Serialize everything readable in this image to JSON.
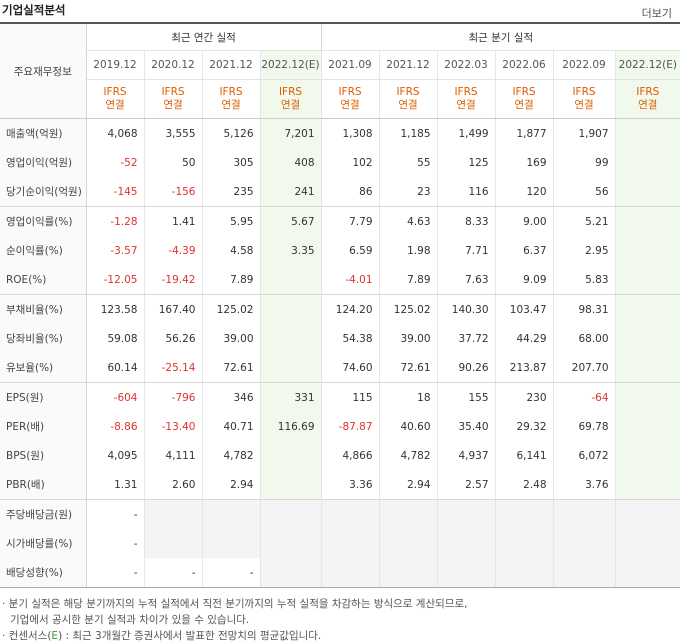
{
  "header": {
    "title": "기업실적분석",
    "more": "더보기"
  },
  "table": {
    "corner_label": "주요재무정보",
    "annual_label": "최근 연간 실적",
    "quarter_label": "최근 분기 실적",
    "periods": [
      "2019.12",
      "2020.12",
      "2021.12",
      "2022.12(E)",
      "2021.09",
      "2021.12",
      "2022.03",
      "2022.06",
      "2022.09",
      "2022.12(E)"
    ],
    "ifrs_top": "IFRS",
    "ifrs_bottom": "연결",
    "rows": [
      {
        "label": "매출액(억원)",
        "values": [
          "4,068",
          "3,555",
          "5,126",
          "7,201",
          "1,308",
          "1,185",
          "1,499",
          "1,877",
          "1,907",
          ""
        ]
      },
      {
        "label": "영업이익(억원)",
        "values": [
          "-52",
          "50",
          "305",
          "408",
          "102",
          "55",
          "125",
          "169",
          "99",
          ""
        ]
      },
      {
        "label": "당기순이익(억원)",
        "values": [
          "-145",
          "-156",
          "235",
          "241",
          "86",
          "23",
          "116",
          "120",
          "56",
          ""
        ]
      },
      {
        "label": "영업이익률(%)",
        "values": [
          "-1.28",
          "1.41",
          "5.95",
          "5.67",
          "7.79",
          "4.63",
          "8.33",
          "9.00",
          "5.21",
          ""
        ]
      },
      {
        "label": "순이익률(%)",
        "values": [
          "-3.57",
          "-4.39",
          "4.58",
          "3.35",
          "6.59",
          "1.98",
          "7.71",
          "6.37",
          "2.95",
          ""
        ]
      },
      {
        "label": "ROE(%)",
        "values": [
          "-12.05",
          "-19.42",
          "7.89",
          "",
          "-4.01",
          "7.89",
          "7.63",
          "9.09",
          "5.83",
          ""
        ]
      },
      {
        "label": "부채비율(%)",
        "values": [
          "123.58",
          "167.40",
          "125.02",
          "",
          "124.20",
          "125.02",
          "140.30",
          "103.47",
          "98.31",
          ""
        ]
      },
      {
        "label": "당좌비율(%)",
        "values": [
          "59.08",
          "56.26",
          "39.00",
          "",
          "54.38",
          "39.00",
          "37.72",
          "44.29",
          "68.00",
          ""
        ]
      },
      {
        "label": "유보율(%)",
        "values": [
          "60.14",
          "-25.14",
          "72.61",
          "",
          "74.60",
          "72.61",
          "90.26",
          "213.87",
          "207.70",
          ""
        ]
      },
      {
        "label": "EPS(원)",
        "values": [
          "-604",
          "-796",
          "346",
          "331",
          "115",
          "18",
          "155",
          "230",
          "-64",
          ""
        ]
      },
      {
        "label": "PER(배)",
        "values": [
          "-8.86",
          "-13.40",
          "40.71",
          "116.69",
          "-87.87",
          "40.60",
          "35.40",
          "29.32",
          "69.78",
          ""
        ]
      },
      {
        "label": "BPS(원)",
        "values": [
          "4,095",
          "4,111",
          "4,782",
          "",
          "4,866",
          "4,782",
          "4,937",
          "6,141",
          "6,072",
          ""
        ]
      },
      {
        "label": "PBR(배)",
        "values": [
          "1.31",
          "2.60",
          "2.94",
          "",
          "3.36",
          "2.94",
          "2.57",
          "2.48",
          "3.76",
          ""
        ]
      },
      {
        "label": "주당배당금(원)",
        "values": [
          "-",
          "",
          "",
          "",
          "",
          "",
          "",
          "",
          "",
          ""
        ]
      },
      {
        "label": "시가배당률(%)",
        "values": [
          "-",
          "",
          "",
          "",
          "",
          "",
          "",
          "",
          "",
          ""
        ]
      },
      {
        "label": "배당성향(%)",
        "values": [
          "-",
          "-",
          "-",
          "",
          "",
          "",
          "",
          "",
          "",
          ""
        ]
      }
    ]
  },
  "notes": {
    "line1": "· 분기 실적은 해당 분기까지의 누적 실적에서 직전 분기까지의 누적 실적을 차감하는 방식으로 계산되므로,",
    "line2": "기업에서 공시한 분기 실적과 차이가 있을 수 있습니다.",
    "line3_pre": "· 컨센서스(",
    "line3_e": "E",
    "line3_post": ") : 최근 3개월간 증권사에서 발표한 전망치의 평균값입니다."
  },
  "colors": {
    "negative": "#e0322f",
    "ifrs": "#e05a00",
    "estimate_bg": "#f1f8ec",
    "consensus_e": "#3a9c2f"
  }
}
